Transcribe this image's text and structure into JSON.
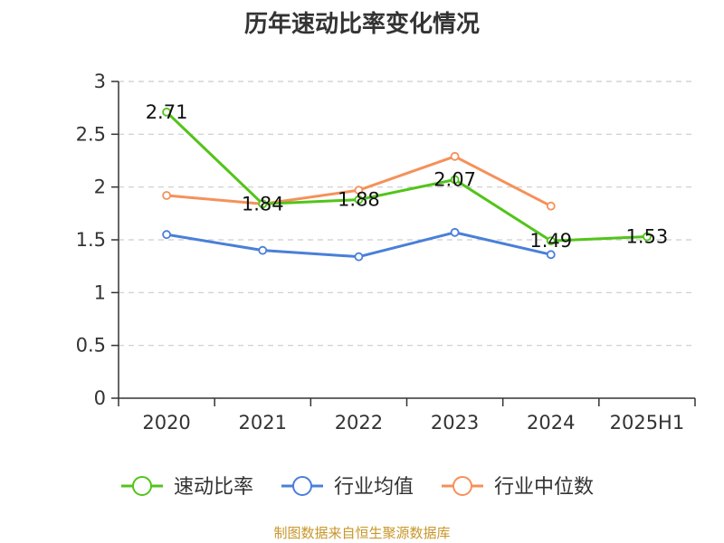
{
  "chart_data": {
    "type": "line",
    "title": "历年速动比率变化情况",
    "categories": [
      "2020",
      "2021",
      "2022",
      "2023",
      "2024",
      "2025H1"
    ],
    "ylim": [
      0,
      3
    ],
    "yticks": [
      "0",
      "0.5",
      "1",
      "1.5",
      "2",
      "2.5",
      "3"
    ],
    "grid": true,
    "legend_position": "bottom",
    "series": [
      {
        "name": "速动比率",
        "color": "#52c41a",
        "values": [
          2.71,
          1.84,
          1.88,
          2.07,
          1.49,
          1.53
        ],
        "labels": [
          "2.71",
          "1.84",
          "1.88",
          "2.07",
          "1.49",
          "1.53"
        ]
      },
      {
        "name": "行业均值",
        "color": "#4a7fd9",
        "values": [
          1.55,
          1.4,
          1.34,
          1.57,
          1.36,
          null
        ]
      },
      {
        "name": "行业中位数",
        "color": "#f5915a",
        "values": [
          1.92,
          1.84,
          1.97,
          2.29,
          1.82,
          null
        ]
      }
    ]
  },
  "footer": {
    "source": "制图数据来自恒生聚源数据库"
  }
}
